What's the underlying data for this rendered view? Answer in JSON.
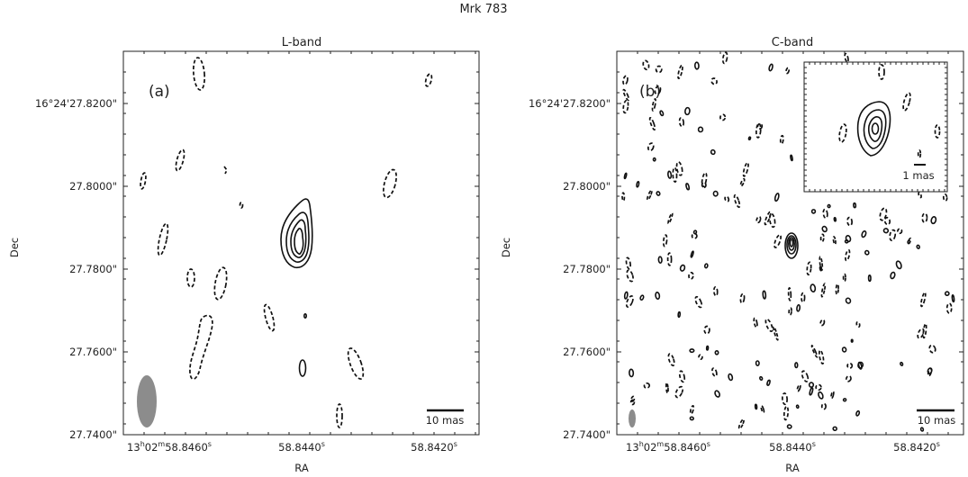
{
  "figure_title": "Mrk 783",
  "chart_data": [
    {
      "type": "contour",
      "panel": "(a)",
      "title": "L-band",
      "xlabel": "RA",
      "ylabel": "Dec",
      "x_tick_labels": [
        {
          "value": "58.8460",
          "text": "13h02m58.8460s"
        },
        {
          "value": "58.8440",
          "text": "58.8440s"
        },
        {
          "value": "58.8420",
          "text": "58.8420s"
        }
      ],
      "y_tick_labels": [
        {
          "value": 27.82,
          "text": "16°24'27.8200\""
        },
        {
          "value": 27.8,
          "text": "27.8000\""
        },
        {
          "value": 27.78,
          "text": "27.7800\""
        },
        {
          "value": 27.76,
          "text": "27.7600\""
        },
        {
          "value": 27.74,
          "text": "27.7400\""
        }
      ],
      "xlim": [
        58.8475,
        58.8404
      ],
      "ylim": [
        27.74,
        27.832
      ],
      "x_units": "RA seconds (13h02m)",
      "y_units": "Dec arcsec (16°24')",
      "scale_bar_label": "10 mas",
      "source_peak": {
        "ra_s": 58.84419,
        "dec_arcsec": 27.7866
      },
      "positive_contour_levels": 4,
      "negative_contours": "dashed",
      "beam": {
        "shape": "ellipse",
        "position": "bottom-left",
        "major_mas": 11,
        "minor_mas": 4.8
      },
      "grid": false
    },
    {
      "type": "contour",
      "panel": "(b)",
      "title": "C-band",
      "xlabel": "RA",
      "ylabel": "Dec",
      "x_tick_labels": [
        {
          "value": "58.8460",
          "text": "13h02m58.8460s"
        },
        {
          "value": "58.8440",
          "text": "58.8440s"
        },
        {
          "value": "58.8420",
          "text": "58.8420s"
        }
      ],
      "y_tick_labels": [
        {
          "value": 27.82,
          "text": "16°24'27.8200\""
        },
        {
          "value": 27.8,
          "text": "27.8000\""
        },
        {
          "value": 27.78,
          "text": "27.7800\""
        },
        {
          "value": 27.76,
          "text": "27.7600\""
        },
        {
          "value": 27.74,
          "text": "27.7400\""
        }
      ],
      "xlim": [
        58.847,
        58.8405
      ],
      "ylim": [
        27.74,
        27.832
      ],
      "x_units": "RA seconds (13h02m)",
      "y_units": "Dec arcsec (16°24')",
      "scale_bar_label": "10 mas",
      "source_peak": {
        "ra_s": 58.84441,
        "dec_arcsec": 27.7838
      },
      "positive_contour_levels": 4,
      "negative_contours": "dashed, many small noise islands",
      "beam": {
        "shape": "ellipse",
        "position": "bottom-left",
        "major_mas": 4,
        "minor_mas": 2
      },
      "inset": {
        "position": "top-right",
        "scale_bar_label": "1 mas",
        "positive_contour_levels": 4
      },
      "grid": false
    }
  ]
}
